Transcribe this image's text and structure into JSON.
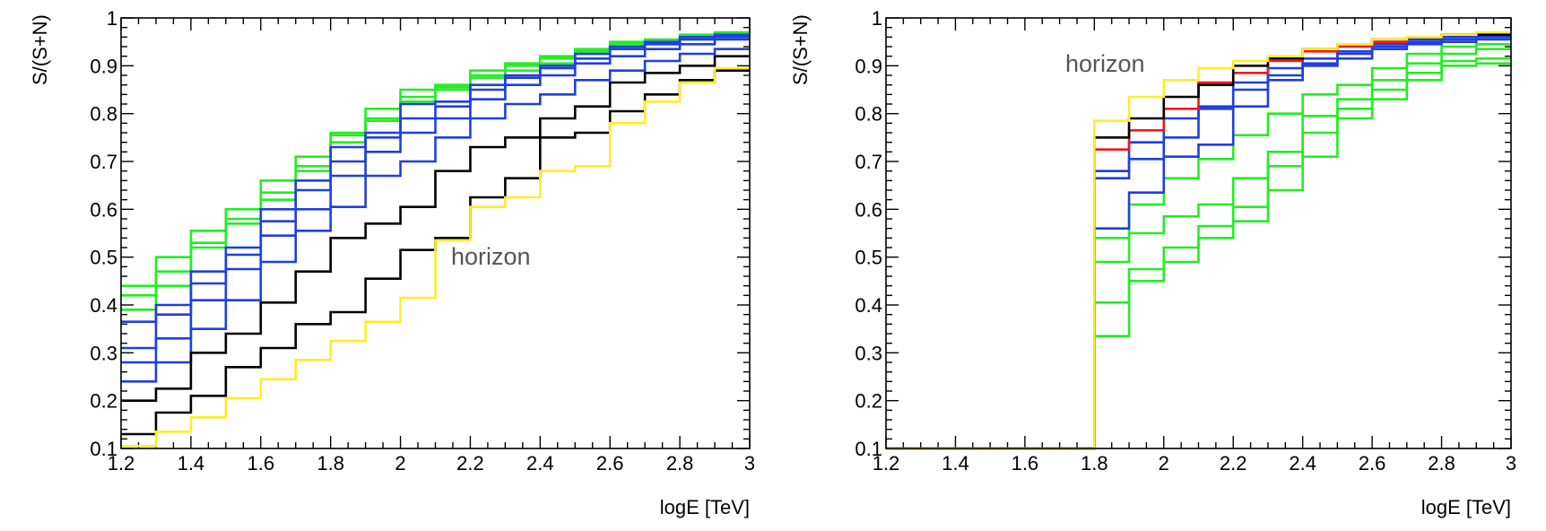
{
  "chart_data": [
    {
      "type": "line",
      "style": "step",
      "title": "",
      "xlabel": "logE [TeV]",
      "ylabel": "S/(S+N)",
      "xlim": [
        1.2,
        3.0
      ],
      "ylim": [
        0.1,
        1.0
      ],
      "xticks": [
        "1.2",
        "1.4",
        "1.6",
        "1.8",
        "2",
        "2.2",
        "2.4",
        "2.6",
        "2.8",
        "3"
      ],
      "yticks": [
        "0.1",
        "0.2",
        "0.3",
        "0.4",
        "0.5",
        "0.6",
        "0.7",
        "0.8",
        "0.9",
        "1"
      ],
      "annotation": "horizon",
      "bin_edges": [
        1.2,
        1.3,
        1.4,
        1.5,
        1.6,
        1.7,
        1.8,
        1.9,
        2.0,
        2.1,
        2.2,
        2.3,
        2.4,
        2.5,
        2.6,
        2.7,
        2.8,
        2.9,
        3.0
      ],
      "series": [
        {
          "name": "green-1",
          "color": "#22ee22",
          "values": [
            0.44,
            0.5,
            0.555,
            0.6,
            0.66,
            0.71,
            0.76,
            0.81,
            0.85,
            0.86,
            0.89,
            0.905,
            0.92,
            0.935,
            0.95,
            0.955,
            0.965,
            0.97
          ]
        },
        {
          "name": "green-2",
          "color": "#22ee22",
          "values": [
            0.42,
            0.47,
            0.53,
            0.58,
            0.635,
            0.69,
            0.755,
            0.79,
            0.835,
            0.855,
            0.88,
            0.9,
            0.915,
            0.93,
            0.945,
            0.95,
            0.96,
            0.965
          ]
        },
        {
          "name": "green-3",
          "color": "#22ee22",
          "values": [
            0.39,
            0.44,
            0.52,
            0.57,
            0.62,
            0.68,
            0.74,
            0.785,
            0.825,
            0.85,
            0.875,
            0.89,
            0.905,
            0.925,
            0.94,
            0.945,
            0.955,
            0.96
          ]
        },
        {
          "name": "blue-1",
          "color": "#1f3fe0",
          "values": [
            0.365,
            0.4,
            0.47,
            0.52,
            0.6,
            0.66,
            0.73,
            0.76,
            0.82,
            0.825,
            0.86,
            0.88,
            0.9,
            0.925,
            0.94,
            0.95,
            0.96,
            0.965
          ]
        },
        {
          "name": "blue-2",
          "color": "#1f3fe0",
          "values": [
            0.31,
            0.38,
            0.445,
            0.505,
            0.575,
            0.64,
            0.7,
            0.75,
            0.79,
            0.815,
            0.85,
            0.875,
            0.895,
            0.915,
            0.935,
            0.945,
            0.955,
            0.96
          ]
        },
        {
          "name": "blue-3",
          "color": "#1f3fe0",
          "values": [
            0.28,
            0.33,
            0.41,
            0.475,
            0.545,
            0.6,
            0.67,
            0.72,
            0.76,
            0.79,
            0.83,
            0.86,
            0.88,
            0.905,
            0.92,
            0.935,
            0.945,
            0.955
          ]
        },
        {
          "name": "blue-4",
          "color": "#1f3fe0",
          "values": [
            0.24,
            0.28,
            0.35,
            0.41,
            0.49,
            0.555,
            0.605,
            0.67,
            0.7,
            0.75,
            0.79,
            0.82,
            0.84,
            0.87,
            0.89,
            0.91,
            0.925,
            0.935
          ]
        },
        {
          "name": "black-1",
          "color": "#000000",
          "values": [
            0.2,
            0.225,
            0.3,
            0.34,
            0.405,
            0.47,
            0.54,
            0.57,
            0.605,
            0.68,
            0.73,
            0.75,
            0.79,
            0.815,
            0.865,
            0.885,
            0.9,
            0.92
          ]
        },
        {
          "name": "black-2",
          "color": "#000000",
          "values": [
            0.13,
            0.175,
            0.21,
            0.27,
            0.31,
            0.36,
            0.385,
            0.455,
            0.515,
            0.54,
            0.625,
            0.665,
            0.75,
            0.76,
            0.805,
            0.84,
            0.87,
            0.89
          ]
        },
        {
          "name": "yellow",
          "color": "#ffee22",
          "values": [
            0.105,
            0.135,
            0.165,
            0.205,
            0.245,
            0.285,
            0.325,
            0.365,
            0.415,
            0.535,
            0.605,
            0.625,
            0.68,
            0.69,
            0.78,
            0.825,
            0.865,
            0.895
          ]
        }
      ]
    },
    {
      "type": "line",
      "style": "step",
      "title": "",
      "xlabel": "logE [TeV]",
      "ylabel": "S/(S+N)",
      "xlim": [
        1.2,
        3.0
      ],
      "ylim": [
        0.1,
        1.0
      ],
      "xticks": [
        "1.2",
        "1.4",
        "1.6",
        "1.8",
        "2",
        "2.2",
        "2.4",
        "2.6",
        "2.8",
        "3"
      ],
      "yticks": [
        "0.1",
        "0.2",
        "0.3",
        "0.4",
        "0.5",
        "0.6",
        "0.7",
        "0.8",
        "0.9",
        "1"
      ],
      "annotation": "horizon",
      "bin_edges": [
        1.2,
        1.3,
        1.4,
        1.5,
        1.6,
        1.7,
        1.8,
        1.9,
        2.0,
        2.1,
        2.2,
        2.3,
        2.4,
        2.5,
        2.6,
        2.7,
        2.8,
        2.9,
        3.0
      ],
      "series": [
        {
          "name": "green-1",
          "color": "#22ee22",
          "values": [
            0.1,
            0.1,
            0.1,
            0.1,
            0.1,
            0.1,
            0.335,
            0.45,
            0.49,
            0.54,
            0.575,
            0.64,
            0.71,
            0.79,
            0.83,
            0.87,
            0.9,
            0.905
          ]
        },
        {
          "name": "green-2",
          "color": "#22ee22",
          "values": [
            0.1,
            0.1,
            0.1,
            0.1,
            0.1,
            0.1,
            0.405,
            0.475,
            0.52,
            0.565,
            0.605,
            0.69,
            0.76,
            0.81,
            0.85,
            0.885,
            0.91,
            0.915
          ]
        },
        {
          "name": "green-3",
          "color": "#22ee22",
          "values": [
            0.1,
            0.1,
            0.1,
            0.1,
            0.1,
            0.1,
            0.49,
            0.55,
            0.585,
            0.61,
            0.665,
            0.72,
            0.795,
            0.83,
            0.87,
            0.905,
            0.925,
            0.935
          ]
        },
        {
          "name": "green-4",
          "color": "#22ee22",
          "values": [
            0.1,
            0.1,
            0.1,
            0.1,
            0.1,
            0.1,
            0.54,
            0.61,
            0.665,
            0.705,
            0.755,
            0.8,
            0.84,
            0.86,
            0.895,
            0.925,
            0.94,
            0.945
          ]
        },
        {
          "name": "blue-1",
          "color": "#1f3fe0",
          "values": [
            0.1,
            0.1,
            0.1,
            0.1,
            0.1,
            0.1,
            0.56,
            0.635,
            0.71,
            0.735,
            0.815,
            0.87,
            0.9,
            0.915,
            0.935,
            0.945,
            0.95,
            0.955
          ]
        },
        {
          "name": "blue-2",
          "color": "#1f3fe0",
          "values": [
            0.1,
            0.1,
            0.1,
            0.1,
            0.1,
            0.1,
            0.665,
            0.705,
            0.75,
            0.81,
            0.865,
            0.88,
            0.905,
            0.925,
            0.94,
            0.95,
            0.955,
            0.96
          ]
        },
        {
          "name": "blue-3",
          "color": "#1f3fe0",
          "values": [
            0.1,
            0.1,
            0.1,
            0.1,
            0.1,
            0.1,
            0.68,
            0.74,
            0.79,
            0.815,
            0.85,
            0.895,
            0.915,
            0.93,
            0.945,
            0.955,
            0.96,
            0.965
          ]
        },
        {
          "name": "red",
          "color": "#ee1a1a",
          "values": [
            0.1,
            0.1,
            0.1,
            0.1,
            0.1,
            0.1,
            0.725,
            0.765,
            0.81,
            0.865,
            0.885,
            0.91,
            0.93,
            0.94,
            0.95,
            0.96,
            0.965,
            0.965
          ]
        },
        {
          "name": "black",
          "color": "#000000",
          "values": [
            0.1,
            0.1,
            0.1,
            0.1,
            0.1,
            0.1,
            0.75,
            0.79,
            0.835,
            0.86,
            0.9,
            0.915,
            0.935,
            0.945,
            0.955,
            0.96,
            0.965,
            0.965
          ]
        },
        {
          "name": "yellow",
          "color": "#ffee22",
          "values": [
            0.1,
            0.1,
            0.1,
            0.1,
            0.1,
            0.1,
            0.785,
            0.835,
            0.87,
            0.895,
            0.91,
            0.92,
            0.935,
            0.945,
            0.955,
            0.96,
            0.965,
            0.97
          ]
        }
      ]
    }
  ]
}
